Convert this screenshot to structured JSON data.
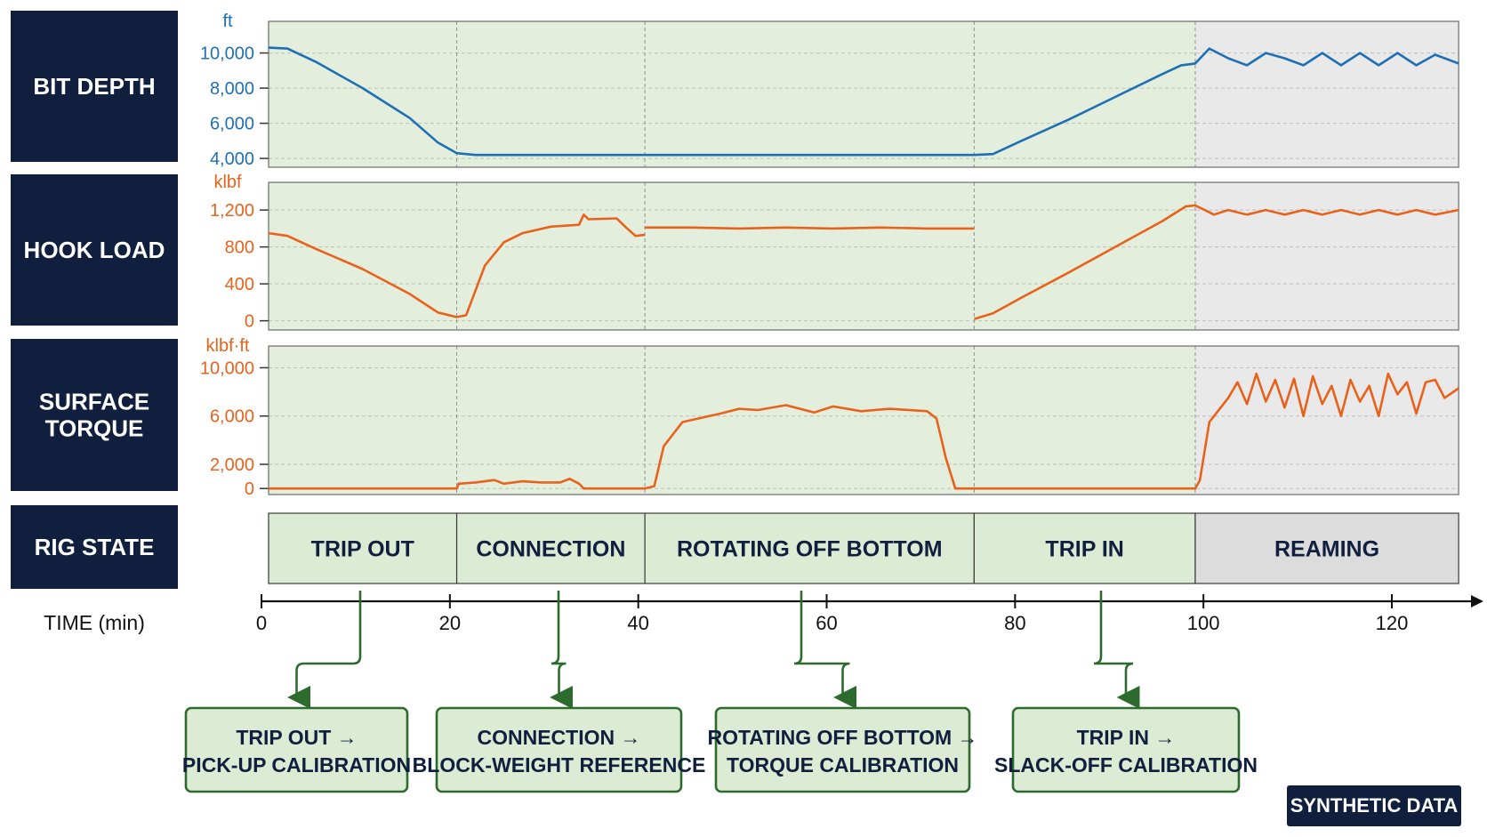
{
  "colors": {
    "navy": "#0f1f3d",
    "blue": "#1f6fb5",
    "orange": "#e8621c",
    "phase_green": "#e3efdc",
    "phase_grey": "#e9e9ea",
    "box_green": "#dcebd3",
    "box_border": "#2d6a2d",
    "arrow_green": "#2d6a2d"
  },
  "badge": "SYNTHETIC DATA",
  "time_axis_label": "TIME (min)",
  "rig_state_label": "RIG STATE",
  "callouts": [
    {
      "line1": "TRIP OUT →",
      "line2": "PICK-UP CALIBRATION",
      "from_state": 0
    },
    {
      "line1": "CONNECTION →",
      "line2": "BLOCK-WEIGHT REFERENCE",
      "from_state": 1
    },
    {
      "line1": "ROTATING OFF BOTTOM →",
      "line2": "TORQUE CALIBRATION",
      "from_state": 2
    },
    {
      "line1": "TRIP IN →",
      "line2": "SLACK-OFF CALIBRATION",
      "from_state": 3
    }
  ],
  "chart_data": {
    "type": "line",
    "x_label": "TIME (min)",
    "x_range": [
      0,
      128
    ],
    "x_ticks": [
      0,
      20,
      40,
      60,
      80,
      100,
      120
    ],
    "rig_states": [
      {
        "name": "TRIP OUT",
        "start": 0,
        "end": 20,
        "shade": "green"
      },
      {
        "name": "CONNECTION",
        "start": 20,
        "end": 40,
        "shade": "green"
      },
      {
        "name": "ROTATING OFF BOTTOM",
        "start": 40,
        "end": 75,
        "shade": "green"
      },
      {
        "name": "TRIP IN",
        "start": 75,
        "end": 98.5,
        "shade": "green"
      },
      {
        "name": "REAMING",
        "start": 98.5,
        "end": 126.5,
        "shade": "grey"
      }
    ],
    "panels": [
      {
        "name": "BIT DEPTH",
        "unit": "ft",
        "color": "blue",
        "y_range": [
          3500,
          11800
        ],
        "y_ticks": [
          4000,
          6000,
          8000,
          10000
        ],
        "y_tick_labels": [
          "4,000",
          "6,000",
          "8,000",
          "10,000"
        ],
        "segments": [
          [
            [
              0,
              10300
            ],
            [
              2,
              10250
            ],
            [
              5,
              9500
            ],
            [
              10,
              8000
            ],
            [
              15,
              6300
            ],
            [
              18,
              4900
            ],
            [
              20,
              4300
            ],
            [
              22,
              4200
            ],
            [
              75,
              4200
            ],
            [
              77,
              4250
            ],
            [
              80,
              5000
            ],
            [
              85,
              6200
            ],
            [
              90,
              7500
            ],
            [
              95,
              8800
            ],
            [
              97,
              9300
            ],
            [
              98.5,
              9400
            ],
            [
              100,
              10250
            ],
            [
              102,
              9700
            ],
            [
              104,
              9300
            ],
            [
              106,
              10000
            ],
            [
              108,
              9700
            ],
            [
              110,
              9300
            ],
            [
              112,
              10000
            ],
            [
              114,
              9300
            ],
            [
              116,
              10000
            ],
            [
              118,
              9300
            ],
            [
              120,
              10000
            ],
            [
              122,
              9300
            ],
            [
              124,
              9900
            ],
            [
              126.5,
              9400
            ]
          ]
        ]
      },
      {
        "name": "HOOK LOAD",
        "unit": "klbf",
        "color": "orange",
        "y_range": [
          -100,
          1500
        ],
        "y_ticks": [
          0,
          400,
          800,
          1200
        ],
        "y_tick_labels": [
          "0",
          "400",
          "800",
          "1,200"
        ],
        "segments": [
          [
            [
              0,
              950
            ],
            [
              2,
              920
            ],
            [
              5,
              780
            ],
            [
              10,
              560
            ],
            [
              15,
              290
            ],
            [
              18,
              90
            ],
            [
              20,
              40
            ],
            [
              21,
              60
            ],
            [
              23,
              600
            ],
            [
              25,
              850
            ],
            [
              27,
              950
            ],
            [
              30,
              1020
            ],
            [
              33,
              1040
            ],
            [
              33.5,
              1150
            ],
            [
              34,
              1100
            ],
            [
              37,
              1110
            ],
            [
              38,
              1010
            ],
            [
              39,
              920
            ],
            [
              40,
              930
            ]
          ],
          [
            [
              40,
              1010
            ],
            [
              45,
              1010
            ],
            [
              50,
              1000
            ],
            [
              55,
              1010
            ],
            [
              60,
              1000
            ],
            [
              65,
              1010
            ],
            [
              70,
              1000
            ],
            [
              75,
              1000
            ]
          ],
          [
            [
              75,
              20
            ],
            [
              77,
              80
            ],
            [
              80,
              250
            ],
            [
              85,
              520
            ],
            [
              90,
              800
            ],
            [
              95,
              1080
            ],
            [
              97.5,
              1240
            ],
            [
              98.5,
              1250
            ],
            [
              99.5,
              1200
            ],
            [
              100.5,
              1150
            ],
            [
              102,
              1200
            ],
            [
              104,
              1150
            ],
            [
              106,
              1200
            ],
            [
              108,
              1150
            ],
            [
              110,
              1200
            ],
            [
              112,
              1150
            ],
            [
              114,
              1200
            ],
            [
              116,
              1150
            ],
            [
              118,
              1200
            ],
            [
              120,
              1150
            ],
            [
              122,
              1200
            ],
            [
              124,
              1150
            ],
            [
              126.5,
              1200
            ]
          ]
        ]
      },
      {
        "name": "SURFACE TORQUE",
        "unit": "klbf·ft",
        "color": "orange",
        "y_range": [
          -500,
          11800
        ],
        "y_ticks": [
          0,
          2000,
          6000,
          10000
        ],
        "y_tick_labels": [
          "0",
          "2,000",
          "6,000",
          "10,000"
        ],
        "segments": [
          [
            [
              0,
              0
            ],
            [
              20,
              0
            ],
            [
              20.2,
              400
            ],
            [
              22,
              500
            ],
            [
              24,
              700
            ],
            [
              25,
              400
            ],
            [
              27,
              600
            ],
            [
              29,
              500
            ],
            [
              31,
              500
            ],
            [
              32,
              800
            ],
            [
              33,
              400
            ],
            [
              33.5,
              0
            ],
            [
              40,
              0
            ],
            [
              41,
              200
            ],
            [
              42,
              3500
            ],
            [
              44,
              5500
            ],
            [
              48,
              6200
            ],
            [
              50,
              6600
            ],
            [
              52,
              6500
            ],
            [
              55,
              6900
            ],
            [
              58,
              6300
            ],
            [
              60,
              6800
            ],
            [
              63,
              6400
            ],
            [
              66,
              6600
            ],
            [
              70,
              6400
            ],
            [
              71,
              5800
            ],
            [
              72,
              2500
            ],
            [
              73,
              0
            ],
            [
              98.5,
              0
            ],
            [
              99,
              700
            ],
            [
              100,
              5500
            ],
            [
              102,
              7500
            ],
            [
              103,
              8800
            ],
            [
              104,
              7000
            ],
            [
              105,
              9500
            ],
            [
              106,
              7200
            ],
            [
              107,
              9000
            ],
            [
              108,
              6700
            ],
            [
              109,
              9100
            ],
            [
              110,
              6000
            ],
            [
              111,
              9300
            ],
            [
              112,
              7000
            ],
            [
              113,
              8500
            ],
            [
              114,
              6000
            ],
            [
              115,
              9000
            ],
            [
              116,
              7200
            ],
            [
              117,
              8500
            ],
            [
              118,
              6000
            ],
            [
              119,
              9500
            ],
            [
              120,
              7800
            ],
            [
              121,
              8800
            ],
            [
              122,
              6200
            ],
            [
              123,
              8800
            ],
            [
              124,
              9000
            ],
            [
              125,
              7500
            ],
            [
              126.5,
              8300
            ]
          ]
        ]
      }
    ]
  }
}
